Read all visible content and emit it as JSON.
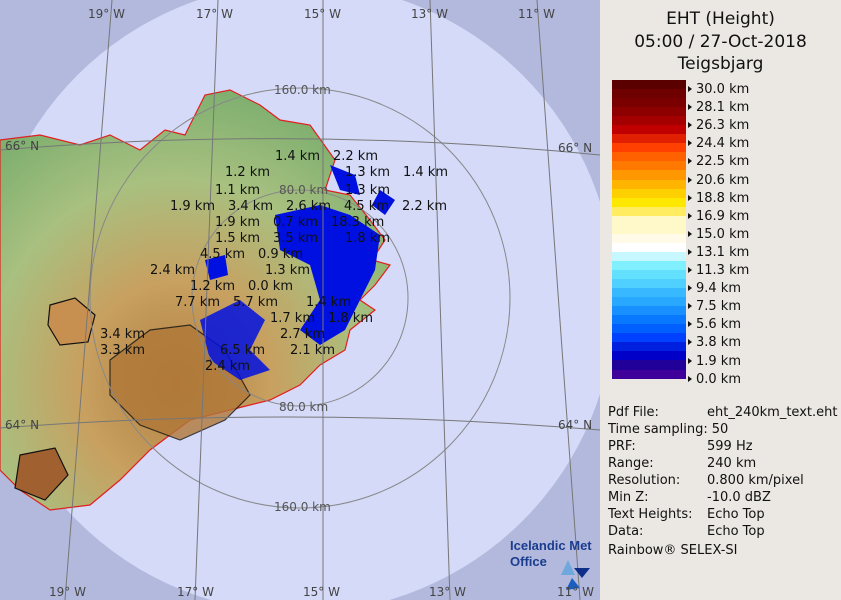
{
  "header": {
    "title": "EHT (Height)",
    "datetime": "05:00 / 27-Oct-2018",
    "site": "Teigsbjarg"
  },
  "legend": {
    "ticks": [
      "30.0 km",
      "28.1 km",
      "26.3 km",
      "24.4 km",
      "22.5 km",
      "20.6 km",
      "18.8 km",
      "16.9 km",
      "15.0 km",
      "13.1 km",
      "11.3 km",
      "9.4 km",
      "7.5 km",
      "5.6 km",
      "3.8 km",
      "1.9 km",
      "0.0 km"
    ],
    "colors": [
      "#5a0000",
      "#6e0000",
      "#7a0000",
      "#8c0000",
      "#a40000",
      "#c00000",
      "#e02000",
      "#ff4000",
      "#ff6000",
      "#ff7800",
      "#ff9800",
      "#ffb400",
      "#ffd000",
      "#ffe800",
      "#ffec60",
      "#fff8c8",
      "#fff8c8",
      "#fffbe8",
      "#ffffff",
      "#c8f8ff",
      "#80f0ff",
      "#64e0ff",
      "#50d0ff",
      "#38b8ff",
      "#28a8ff",
      "#1890ff",
      "#0878ff",
      "#0060ff",
      "#0040ff",
      "#0020e0",
      "#0000c8",
      "#200098",
      "#40009a"
    ]
  },
  "info": [
    {
      "key": "Pdf File:",
      "value": "eht_240km_text.eht"
    },
    {
      "key": "Time sampling:",
      "value": "50"
    },
    {
      "key": "PRF:",
      "value": "599 Hz"
    },
    {
      "key": "Range:",
      "value": "240 km"
    },
    {
      "key": "Resolution:",
      "value": "0.800 km/pixel"
    },
    {
      "key": "Min Z:",
      "value": "-10.0 dBZ"
    },
    {
      "key": "Text Heights:",
      "value": "Echo Top"
    },
    {
      "key": "Data:",
      "value": "Echo Top"
    }
  ],
  "credit": "Rainbow® SELEX-SI",
  "logo": {
    "line1": "Icelandic Met",
    "line2": "Office"
  },
  "map": {
    "rings": [
      "160.0 km",
      "80.0 km",
      "80.0 km",
      "160.0 km"
    ],
    "lon_top": [
      "19° W",
      "17° W",
      "15° W",
      "13° W",
      "11° W"
    ],
    "lon_bottom": [
      "19° W",
      "17° W",
      "15° W",
      "13° W",
      "11° W"
    ],
    "lat": [
      "66° N",
      "66° N",
      "64° N",
      "64° N"
    ],
    "echo_labels": [
      "1.4 km",
      "2.2 km",
      "1.3 km",
      "1.4 km",
      "1.3 km",
      "1.2 km",
      "1.1 km",
      "1.9 km",
      "3.4 km",
      "2.6 km",
      "4.5 km",
      "2.2 km",
      "1.9 km",
      "0.7 km",
      "18.3 km",
      "1.5 km",
      "4.5 km",
      "3.5 km",
      "0.9 km",
      "1.8 km",
      "2.4 km",
      "1.3 km",
      "1.2 km",
      "0.0 km",
      "7.7 km",
      "5.7 km",
      "1.4 km",
      "1.7 km",
      "1.8 km",
      "3.4 km",
      "3.3 km",
      "2.7 km",
      "6.5 km",
      "2.1 km",
      "2.4 km"
    ],
    "colors": {
      "outside": "#b3b9dc",
      "coverage": "#d4daf8",
      "echo": "#0010e0",
      "coast": "#e02020"
    }
  }
}
